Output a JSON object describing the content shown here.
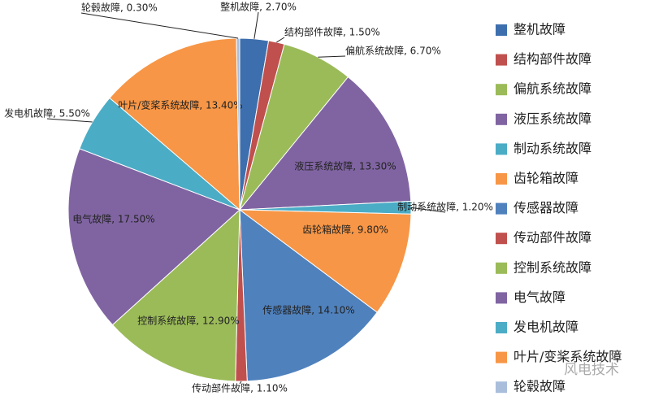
{
  "chart_data": {
    "type": "pie",
    "categories": [
      "整机故障",
      "结构部件故障",
      "偏航系统故障",
      "液压系统故障",
      "制动系统故障",
      "齿轮箱故障",
      "传感器故障",
      "传动部件故障",
      "控制系统故障",
      "电气故障",
      "发电机故障",
      "叶片/变桨系统故障",
      "轮毂故障"
    ],
    "values": [
      2.7,
      1.5,
      6.7,
      13.3,
      1.2,
      9.8,
      14.1,
      1.1,
      12.9,
      17.5,
      5.5,
      13.4,
      0.3
    ],
    "value_labels": [
      "整机故障, 2.70%",
      "结构部件故障, 1.50%",
      "偏航系统故障, 6.70%",
      "液压系统故障, 13.30%",
      "制动系统故障, 1.20%",
      "齿轮箱故障, 9.80%",
      "传感器故障, 14.10%",
      "传动部件故障, 1.10%",
      "控制系统故障, 12.90%",
      "电气故障, 17.50%",
      "发电机故障, 5.50%",
      "叶片/变桨系统故障, 13.40%",
      "轮毂故障, 0.30%"
    ],
    "colors": [
      "#3d6fae",
      "#c0504d",
      "#9bbb59",
      "#8064a2",
      "#4bacc6",
      "#f79646",
      "#4f81bd",
      "#c0504d",
      "#9bbb59",
      "#8064a2",
      "#4bacc6",
      "#f79646",
      "#a9bedb"
    ],
    "legend": "right",
    "watermark": "风电技术"
  }
}
